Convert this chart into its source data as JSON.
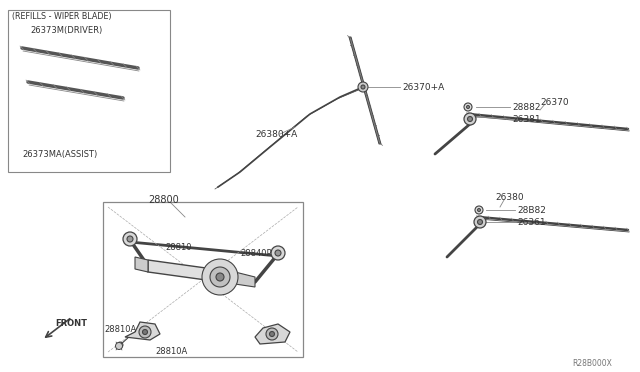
{
  "bg_color": "#ffffff",
  "line_color": "#666666",
  "dark_line": "#444444",
  "text_color": "#333333",
  "watermark": "R28B000X",
  "labels": {
    "refills_header": "(REFILLS - WIPER BLADE)",
    "driver": "26373M(DRIVER)",
    "assist": "26373MA(ASSIST)",
    "part_28800": "28800",
    "part_28810": "28810",
    "part_28810A_1": "28810A",
    "part_28810A_2": "28810A",
    "part_28840P": "28840P",
    "part_26370pA": "26370+A",
    "part_26380pA": "26380+A",
    "part_26370": "26370",
    "part_26380": "26380",
    "part_28882_1": "28882",
    "part_26381_1": "26381",
    "part_28882_2": "28B82",
    "part_26381_2": "26361",
    "front": "FRONT"
  },
  "font_size": 7,
  "small_font": 6.5
}
